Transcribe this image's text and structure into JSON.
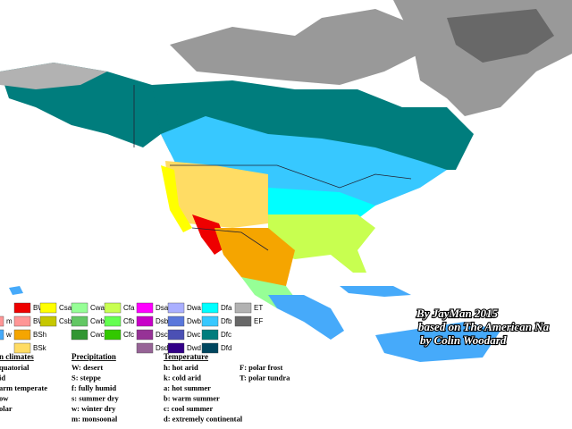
{
  "legend": {
    "rows": [
      [
        {
          "code": "BWh",
          "color": "#ee0000"
        },
        {
          "code": "Csa",
          "color": "#ffff00"
        },
        {
          "code": "Cwa",
          "color": "#96ff96"
        },
        {
          "code": "Cfa",
          "color": "#c8ff50"
        },
        {
          "code": "Dsa",
          "color": "#ff00ff"
        },
        {
          "code": "Dwa",
          "color": "#aaafff"
        },
        {
          "code": "Dfa",
          "color": "#00ffff"
        },
        {
          "code": "ET",
          "color": "#b2b2b2"
        }
      ],
      [
        {
          "code": "m",
          "color": "#ff9696"
        },
        {
          "code": "BWk",
          "color": "#ff9696"
        },
        {
          "code": "Csb",
          "color": "#c6c700"
        },
        {
          "code": "Cwb",
          "color": "#63c764"
        },
        {
          "code": "Cfb",
          "color": "#64ff50"
        },
        {
          "code": "Dsb",
          "color": "#c800c8"
        },
        {
          "code": "Dwb",
          "color": "#5a77db"
        },
        {
          "code": "Dfb",
          "color": "#37c8ff"
        },
        {
          "code": "EF",
          "color": "#686868"
        }
      ],
      [
        {
          "code": "w",
          "color": "#46aafa"
        },
        {
          "code": "BSh",
          "color": "#f5a500"
        },
        {
          "code": "Cwc",
          "color": "#329633"
        },
        {
          "code": "Cfc",
          "color": "#32c800"
        },
        {
          "code": "Dsc",
          "color": "#963296"
        },
        {
          "code": "Dwc",
          "color": "#4b50b4"
        },
        {
          "code": "Dfc",
          "color": "#007d7d"
        }
      ],
      [
        {
          "code": "BSk",
          "color": "#ffdc64"
        },
        {
          "code": "Dsd",
          "color": "#966496"
        },
        {
          "code": "Dwd",
          "color": "#320087"
        },
        {
          "code": "Dfd",
          "color": "#00465f"
        }
      ]
    ]
  },
  "key": {
    "main_climates": {
      "title": "n climates",
      "items": [
        "quatorial",
        "id",
        "arm temperate",
        "ow",
        "olar"
      ]
    },
    "precipitation": {
      "title": "Precipitation",
      "items": [
        "W: desert",
        "S:  steppe",
        "f: fully humid",
        "s: summer dry",
        "w: winter dry",
        "m: monsoonal"
      ]
    },
    "temperature": {
      "title": "Temperature",
      "items": [
        "h: hot arid",
        "k: cold arid",
        "a: hot summer",
        "b: warm summer",
        "c: cool summer",
        "d: extremely continental",
        "F: polar frost",
        "T: polar tundra"
      ]
    }
  },
  "credits": [
    "By JayMan 2015",
    "based on The American Na",
    "by Colin Woodard"
  ]
}
